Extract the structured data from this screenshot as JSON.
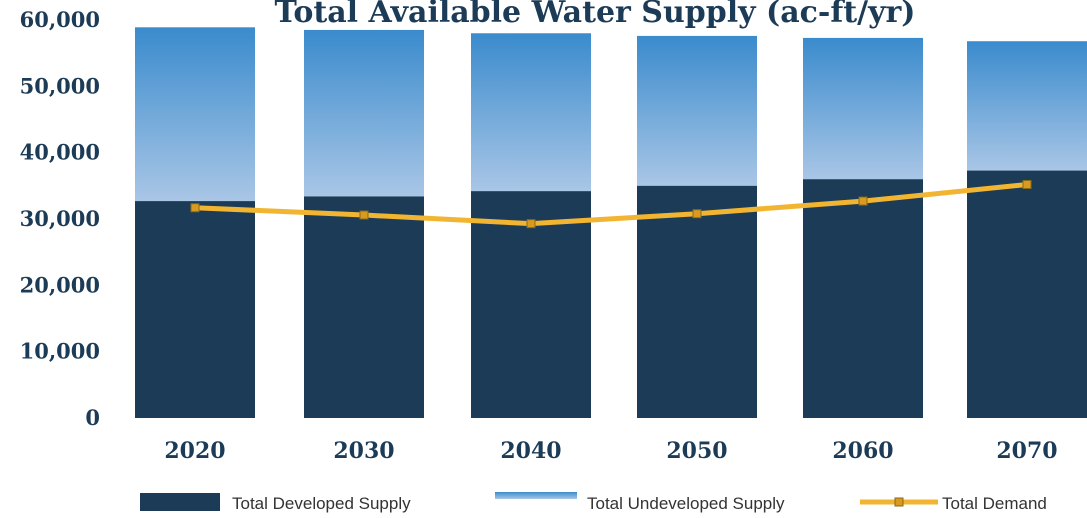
{
  "chart_data": {
    "type": "bar",
    "title": "Total Available Water Supply (ac-ft/yr)",
    "categories": [
      "2020",
      "2030",
      "2040",
      "2050",
      "2060",
      "2070"
    ],
    "series": [
      {
        "name": "Total Developed Supply",
        "kind": "stacked-bar",
        "color": "#1c3b57",
        "values": [
          32700,
          33400,
          34200,
          35000,
          36000,
          37300
        ]
      },
      {
        "name": "Total Undeveloped Supply",
        "kind": "stacked-bar",
        "color_top": "#3a8bcd",
        "color_bottom": "#a9c6e6",
        "values": [
          26200,
          25100,
          23800,
          22600,
          21300,
          19500
        ]
      },
      {
        "name": "Total Demand",
        "kind": "line",
        "color": "#f2b531",
        "values": [
          31700,
          30600,
          29300,
          30800,
          32700,
          35200
        ]
      }
    ],
    "ylim": [
      0,
      60000
    ],
    "yticks": [
      "0",
      "10,000",
      "20,000",
      "30,000",
      "40,000",
      "50,000",
      "60,000"
    ],
    "grid": false,
    "legend": "bottom"
  }
}
